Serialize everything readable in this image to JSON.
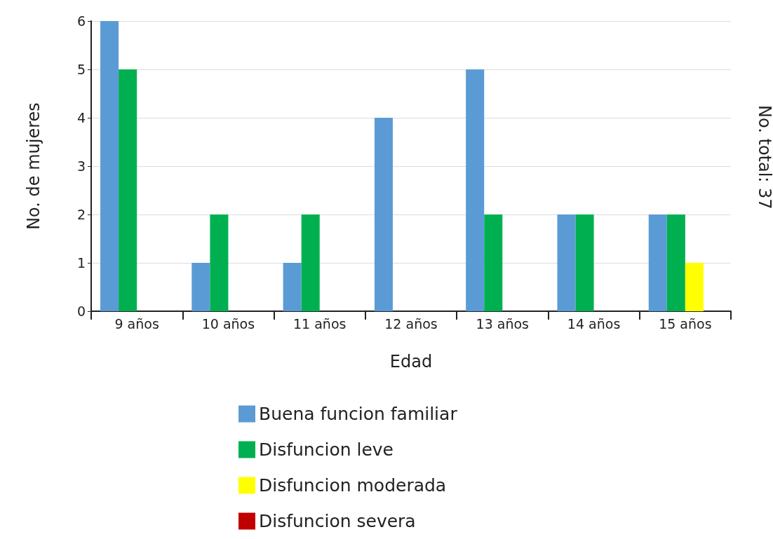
{
  "chart_data": {
    "type": "bar",
    "xlabel": "Edad",
    "ylabel": "No. de mujeres",
    "annotations": [
      "No. total: 37"
    ],
    "categories": [
      "9 años",
      "10 años",
      "11 años",
      "12 años",
      "13 años",
      "14 años",
      "15 años"
    ],
    "series": [
      {
        "name": "Buena funcion familiar",
        "color": "#5b9bd5",
        "values": [
          6,
          1,
          1,
          4,
          5,
          2,
          2
        ]
      },
      {
        "name": "Disfuncion leve",
        "color": "#00b050",
        "values": [
          5,
          2,
          2,
          0,
          2,
          2,
          2
        ]
      },
      {
        "name": "Disfuncion moderada",
        "color": "#ffff00",
        "values": [
          0,
          0,
          0,
          0,
          0,
          0,
          1
        ]
      },
      {
        "name": "Disfuncion severa",
        "color": "#c00000",
        "values": [
          0,
          0,
          0,
          0,
          0,
          0,
          0
        ]
      }
    ],
    "ylim": [
      0,
      6
    ],
    "yticks": [
      0,
      1,
      2,
      3,
      4,
      5,
      6
    ],
    "grid": "y",
    "legend": "bottom"
  }
}
